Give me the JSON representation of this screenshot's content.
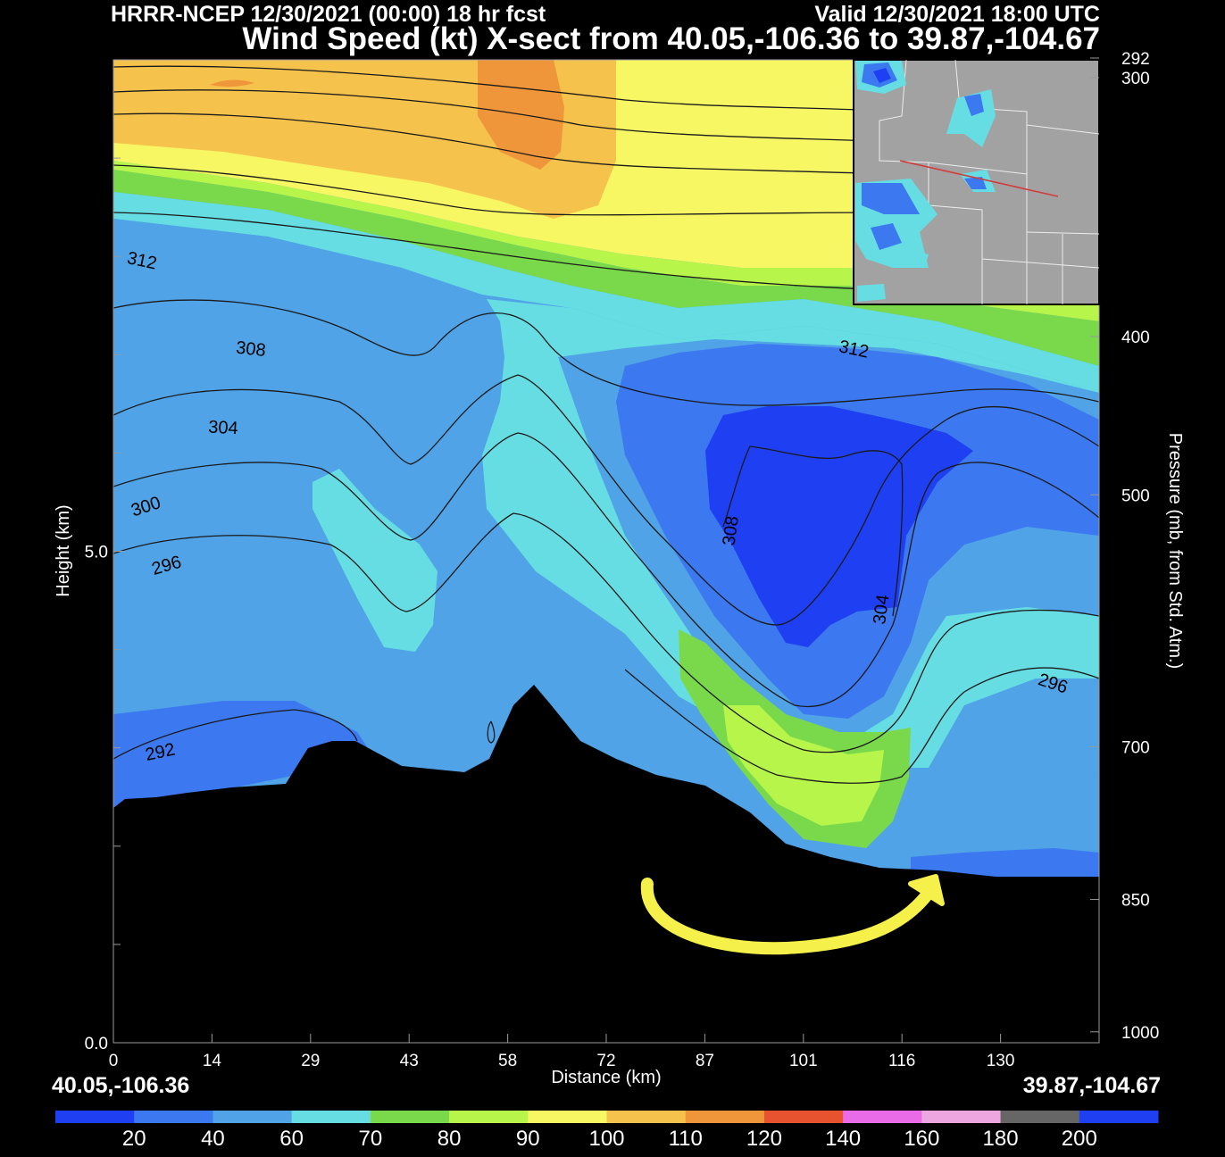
{
  "header": {
    "title_line1": "HRRR-NCEP 12/30/2021 (00:00) 18 hr fcst",
    "valid_time": "Valid 12/30/2021 18:00 UTC",
    "title_line2": "Wind Speed (kt) X-sect from 40.05,-106.36 to 39.87,-104.67"
  },
  "endpoints": {
    "start": "40.05,-106.36",
    "end": "39.87,-104.67"
  },
  "chart_data": {
    "type": "heatmap",
    "xlabel": "Distance (km)",
    "ylabel_left": "Height (km)",
    "ylabel_right": "Pressure (mb, from Std. Atm.)",
    "x_range": [
      0,
      144
    ],
    "x_ticks": [
      "0",
      "14",
      "29",
      "43",
      "58",
      "72",
      "87",
      "101",
      "116",
      "130"
    ],
    "x_tick_values": [
      0,
      14.4,
      28.8,
      43.2,
      57.6,
      72,
      86.4,
      100.8,
      115.2,
      129.6
    ],
    "height_range_km": [
      0,
      10
    ],
    "height_ticks": [
      {
        "label": "0.0",
        "value": 0
      },
      {
        "label": "5.0",
        "value": 5
      }
    ],
    "pressure_ticks": [
      {
        "label": "292",
        "value": 292
      },
      {
        "label": "300",
        "value": 300
      },
      {
        "label": "400",
        "value": 400
      },
      {
        "label": "500",
        "value": 500
      },
      {
        "label": "700",
        "value": 700
      },
      {
        "label": "850",
        "value": 850
      },
      {
        "label": "1000",
        "value": 1000
      }
    ],
    "contour_labels": [
      {
        "label": "312",
        "x": 4,
        "z": 7.9
      },
      {
        "label": "312",
        "x": 108,
        "z": 7.0
      },
      {
        "label": "308",
        "x": 20,
        "z": 7.0
      },
      {
        "label": "304",
        "x": 16,
        "z": 6.2
      },
      {
        "label": "300",
        "x": 5,
        "z": 5.4
      },
      {
        "label": "296",
        "x": 8,
        "z": 4.8
      },
      {
        "label": "292",
        "x": 7,
        "z": 2.9
      },
      {
        "label": "308",
        "x": 91,
        "z": 5.2
      },
      {
        "label": "304",
        "x": 113,
        "z": 4.4
      },
      {
        "label": "296",
        "x": 137,
        "z": 3.6
      }
    ],
    "colorbar": {
      "labels": [
        "20",
        "40",
        "60",
        "70",
        "80",
        "90",
        "100",
        "110",
        "120",
        "140",
        "160",
        "180",
        "200"
      ],
      "colors": [
        "#1f3ff2",
        "#3c78f0",
        "#4fa3e6",
        "#66dde3",
        "#7ad94b",
        "#b7f54b",
        "#f6f763",
        "#f5c24b",
        "#ef963b",
        "#e8532f",
        "#ea6be8",
        "#eea6e0",
        "#666666",
        "#1f3ff2"
      ]
    },
    "fill_colors": {
      "c20": "#1f3ff2",
      "c40": "#3c78f0",
      "c60": "#4fa3e6",
      "c70": "#66dde3",
      "c80": "#7ad94b",
      "c90": "#b7f54b",
      "c100": "#f6f763",
      "c110": "#f5c24b",
      "c120": "#ef963b"
    },
    "terrain_color": "#000000",
    "annotation_color": "#f5f04a"
  },
  "inset_map": {
    "background": "#a2a2a2",
    "echo_light": "#66dde3",
    "echo_mid": "#3c78f0",
    "echo_dark": "#1f3ff2",
    "transect_color": "#d33a3a"
  }
}
